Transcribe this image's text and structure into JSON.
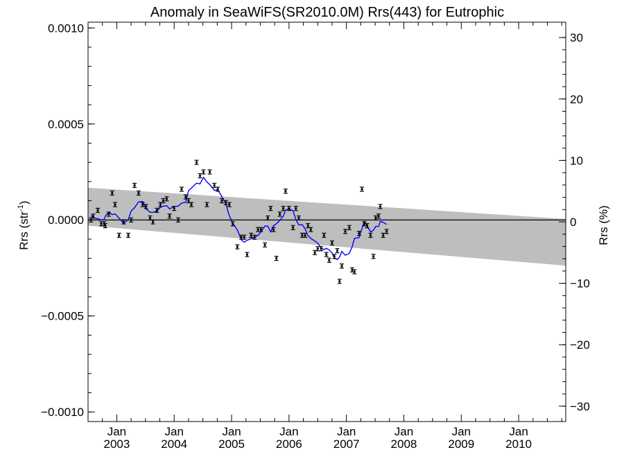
{
  "chart_data": {
    "type": "scatter",
    "title": "Anomaly in SeaWiFS(SR2010.0M) Rrs(443) for Eutrophic",
    "ylabel_left_main": "Rrs (str",
    "ylabel_left_sup": "-1",
    "ylabel_left_end": ")",
    "ylabel_right": "Rrs (%)",
    "xlim": [
      2002.5,
      2010.82
    ],
    "ylim_left": [
      -0.00105,
      0.00103
    ],
    "ylim_right": [
      -32.5,
      32.5
    ],
    "y_left_ticks": [
      {
        "v": 0.001,
        "label": "0.0010"
      },
      {
        "v": 0.0005,
        "label": "0.0005"
      },
      {
        "v": 0.0,
        "label": "0.0000"
      },
      {
        "v": -0.0005,
        "label": "−0.0005"
      },
      {
        "v": -0.001,
        "label": "−0.0010"
      }
    ],
    "y_right_ticks": [
      {
        "v": 30,
        "label": "30"
      },
      {
        "v": 20,
        "label": "20"
      },
      {
        "v": 10,
        "label": "10"
      },
      {
        "v": 0,
        "label": "0"
      },
      {
        "v": -10,
        "label": "−10"
      },
      {
        "v": -20,
        "label": "−20"
      },
      {
        "v": -30,
        "label": "−30"
      }
    ],
    "x_ticks": [
      {
        "v": 2003.0,
        "month": "Jan",
        "year": "2003"
      },
      {
        "v": 2004.0,
        "month": "Jan",
        "year": "2004"
      },
      {
        "v": 2005.0,
        "month": "Jan",
        "year": "2005"
      },
      {
        "v": 2006.0,
        "month": "Jan",
        "year": "2006"
      },
      {
        "v": 2007.0,
        "month": "Jan",
        "year": "2007"
      },
      {
        "v": 2008.0,
        "month": "Jan",
        "year": "2008"
      },
      {
        "v": 2009.0,
        "month": "Jan",
        "year": "2009"
      },
      {
        "v": 2010.0,
        "month": "Jan",
        "year": "2010"
      }
    ],
    "band": {
      "x0": 2002.5,
      "x1": 2010.82,
      "upper": [
        0.000168,
        0.0
      ],
      "lower": [
        -3e-05,
        -0.000238
      ]
    },
    "band_upper_end": 5e-06,
    "zero_line": 0.0,
    "points": [
      [
        2002.55,
        0.0
      ],
      [
        2002.59,
        2e-05
      ],
      [
        2002.67,
        5e-05
      ],
      [
        2002.73,
        -2e-05
      ],
      [
        2002.78,
        -2e-05
      ],
      [
        2002.8,
        -3e-05
      ],
      [
        2002.86,
        3e-05
      ],
      [
        2002.92,
        0.00014
      ],
      [
        2002.97,
        8e-05
      ],
      [
        2003.04,
        -8e-05
      ],
      [
        2003.12,
        -1e-05
      ],
      [
        2003.2,
        -8e-05
      ],
      [
        2003.25,
        0.0
      ],
      [
        2003.31,
        0.00018
      ],
      [
        2003.38,
        0.00014
      ],
      [
        2003.45,
        8e-05
      ],
      [
        2003.51,
        7e-05
      ],
      [
        2003.58,
        1e-05
      ],
      [
        2003.63,
        -1e-05
      ],
      [
        2003.7,
        5e-05
      ],
      [
        2003.76,
        8e-05
      ],
      [
        2003.81,
        0.0001
      ],
      [
        2003.87,
        0.00011
      ],
      [
        2003.92,
        2e-05
      ],
      [
        2004.0,
        6e-05
      ],
      [
        2004.07,
        0.0
      ],
      [
        2004.13,
        0.00016
      ],
      [
        2004.2,
        0.00012
      ],
      [
        2004.25,
        0.0001
      ],
      [
        2004.3,
        8e-05
      ],
      [
        2004.39,
        0.0003
      ],
      [
        2004.45,
        0.00023
      ],
      [
        2004.51,
        0.00025
      ],
      [
        2004.57,
        8e-05
      ],
      [
        2004.62,
        0.00025
      ],
      [
        2004.7,
        0.00018
      ],
      [
        2004.76,
        0.00016
      ],
      [
        2004.83,
        0.0001
      ],
      [
        2004.9,
        9e-05
      ],
      [
        2004.96,
        8e-05
      ],
      [
        2005.02,
        -2e-05
      ],
      [
        2005.1,
        -0.00014
      ],
      [
        2005.17,
        -9e-05
      ],
      [
        2005.22,
        -9e-05
      ],
      [
        2005.27,
        -0.00018
      ],
      [
        2005.34,
        -8e-05
      ],
      [
        2005.4,
        -9e-05
      ],
      [
        2005.46,
        -5e-05
      ],
      [
        2005.51,
        -5e-05
      ],
      [
        2005.58,
        -0.00013
      ],
      [
        2005.63,
        1e-05
      ],
      [
        2005.68,
        6e-05
      ],
      [
        2005.73,
        -5e-05
      ],
      [
        2005.78,
        -0.0002
      ],
      [
        2005.84,
        3e-05
      ],
      [
        2005.9,
        6e-05
      ],
      [
        2005.94,
        0.00015
      ],
      [
        2006.0,
        6e-05
      ],
      [
        2006.07,
        -4e-05
      ],
      [
        2006.12,
        6e-05
      ],
      [
        2006.17,
        1e-05
      ],
      [
        2006.23,
        -8e-05
      ],
      [
        2006.28,
        -8e-05
      ],
      [
        2006.33,
        -3e-05
      ],
      [
        2006.38,
        -5e-05
      ],
      [
        2006.45,
        -0.00017
      ],
      [
        2006.5,
        -0.00015
      ],
      [
        2006.56,
        -0.00015
      ],
      [
        2006.61,
        -8e-05
      ],
      [
        2006.65,
        -0.00018
      ],
      [
        2006.7,
        -0.00021
      ],
      [
        2006.75,
        -0.00012
      ],
      [
        2006.79,
        -0.00019
      ],
      [
        2006.84,
        -0.00016
      ],
      [
        2006.88,
        -0.00032
      ],
      [
        2006.92,
        -0.00024
      ],
      [
        2006.98,
        -6e-05
      ],
      [
        2007.05,
        -4e-05
      ],
      [
        2007.1,
        -0.00026
      ],
      [
        2007.14,
        -0.00027
      ],
      [
        2007.22,
        -7e-05
      ],
      [
        2007.27,
        0.00016
      ],
      [
        2007.31,
        -2e-05
      ],
      [
        2007.36,
        -3e-05
      ],
      [
        2007.42,
        -8e-05
      ],
      [
        2007.47,
        -0.00019
      ],
      [
        2007.51,
        1e-05
      ],
      [
        2007.56,
        2e-05
      ],
      [
        2007.59,
        7e-05
      ],
      [
        2007.64,
        -8e-05
      ],
      [
        2007.7,
        -6e-05
      ]
    ],
    "line_color": "#0000ff",
    "band_color": "#bebebe",
    "point_color": "#000000"
  }
}
